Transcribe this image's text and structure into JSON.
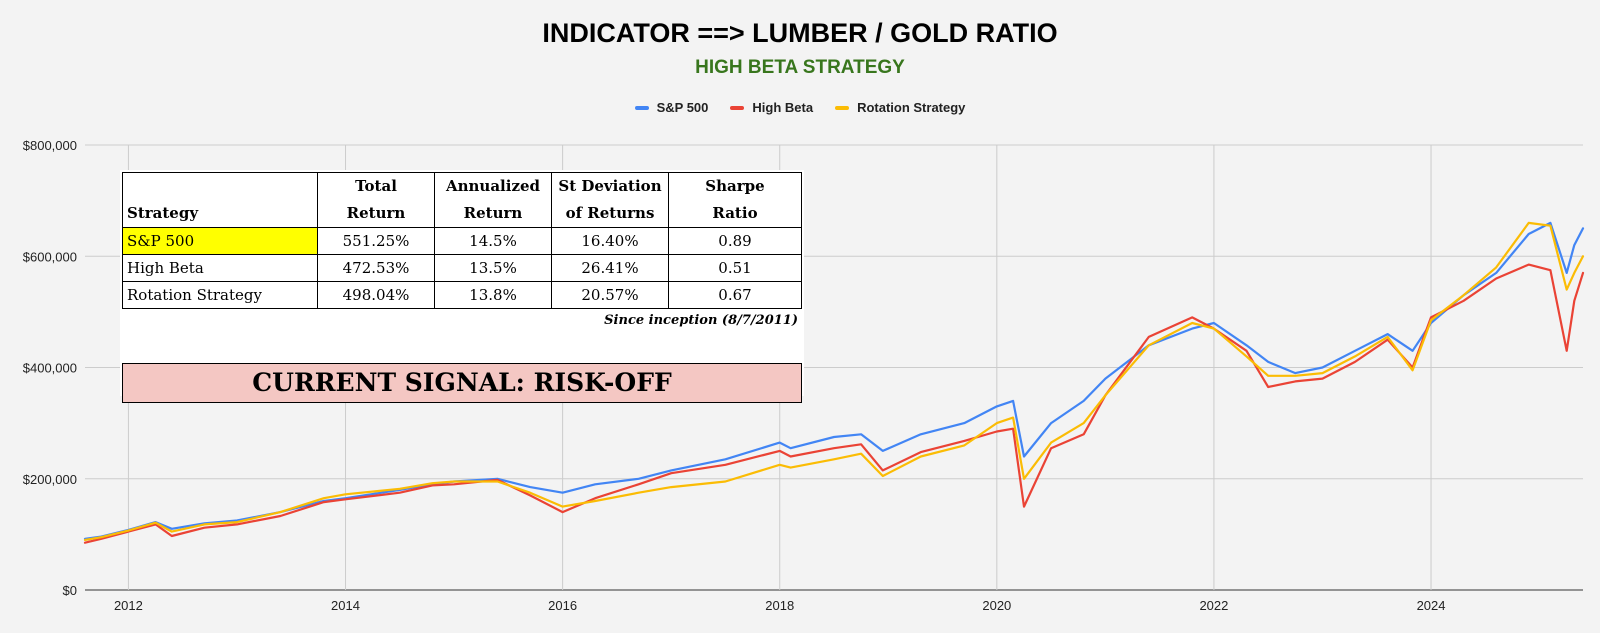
{
  "chart_data": {
    "type": "line",
    "title": "INDICATOR ==> LUMBER / GOLD RATIO",
    "subtitle": "HIGH BETA STRATEGY",
    "xlabel": "",
    "ylabel": "",
    "xlim": [
      2011.6,
      2025.4
    ],
    "ylim": [
      0,
      800000
    ],
    "y_ticks": [
      0,
      200000,
      400000,
      600000,
      800000
    ],
    "y_tick_labels": [
      "$0",
      "$200,000",
      "$400,000",
      "$600,000",
      "$800,000"
    ],
    "x_ticks": [
      2012,
      2014,
      2016,
      2018,
      2020,
      2022,
      2024
    ],
    "x_tick_labels": [
      "2012",
      "2014",
      "2016",
      "2018",
      "2020",
      "2022",
      "2024"
    ],
    "grid": true,
    "legend_position": "top",
    "series": [
      {
        "name": "S&P 500",
        "color": "#4285f4",
        "x": [
          2011.6,
          2011.75,
          2012.0,
          2012.25,
          2012.4,
          2012.7,
          2013.0,
          2013.4,
          2013.8,
          2014.0,
          2014.5,
          2014.8,
          2015.0,
          2015.4,
          2015.7,
          2016.0,
          2016.3,
          2016.7,
          2017.0,
          2017.5,
          2018.0,
          2018.1,
          2018.5,
          2018.75,
          2018.95,
          2019.3,
          2019.7,
          2020.0,
          2020.15,
          2020.25,
          2020.5,
          2020.8,
          2021.0,
          2021.4,
          2021.8,
          2022.0,
          2022.3,
          2022.5,
          2022.75,
          2023.0,
          2023.3,
          2023.6,
          2023.83,
          2024.0,
          2024.3,
          2024.6,
          2024.9,
          2025.1,
          2025.25,
          2025.32,
          2025.4
        ],
        "values": [
          92000,
          96000,
          108000,
          122000,
          110000,
          120000,
          125000,
          140000,
          160000,
          165000,
          180000,
          190000,
          195000,
          200000,
          185000,
          175000,
          190000,
          200000,
          215000,
          235000,
          265000,
          255000,
          275000,
          280000,
          250000,
          280000,
          300000,
          330000,
          340000,
          240000,
          300000,
          340000,
          380000,
          440000,
          470000,
          480000,
          440000,
          410000,
          390000,
          400000,
          430000,
          460000,
          430000,
          480000,
          530000,
          570000,
          640000,
          660000,
          570000,
          620000,
          650000
        ]
      },
      {
        "name": "High Beta",
        "color": "#ea4335",
        "x": [
          2011.6,
          2011.75,
          2012.0,
          2012.25,
          2012.4,
          2012.7,
          2013.0,
          2013.4,
          2013.8,
          2014.0,
          2014.5,
          2014.8,
          2015.0,
          2015.4,
          2015.7,
          2016.0,
          2016.3,
          2016.7,
          2017.0,
          2017.5,
          2018.0,
          2018.1,
          2018.5,
          2018.75,
          2018.95,
          2019.3,
          2019.7,
          2020.0,
          2020.15,
          2020.25,
          2020.5,
          2020.8,
          2021.0,
          2021.4,
          2021.8,
          2022.0,
          2022.3,
          2022.5,
          2022.75,
          2023.0,
          2023.3,
          2023.6,
          2023.83,
          2024.0,
          2024.3,
          2024.6,
          2024.9,
          2025.1,
          2025.25,
          2025.32,
          2025.4
        ],
        "values": [
          85000,
          92000,
          105000,
          118000,
          97000,
          112000,
          118000,
          133000,
          158000,
          163000,
          175000,
          188000,
          190000,
          198000,
          170000,
          140000,
          165000,
          190000,
          210000,
          225000,
          250000,
          240000,
          255000,
          262000,
          215000,
          248000,
          268000,
          285000,
          290000,
          150000,
          255000,
          280000,
          350000,
          455000,
          490000,
          470000,
          430000,
          365000,
          375000,
          380000,
          410000,
          450000,
          400000,
          490000,
          520000,
          560000,
          585000,
          575000,
          430000,
          520000,
          570000
        ]
      },
      {
        "name": "Rotation Strategy",
        "color": "#fbbc04",
        "x": [
          2011.6,
          2011.75,
          2012.0,
          2012.25,
          2012.4,
          2012.7,
          2013.0,
          2013.4,
          2013.8,
          2014.0,
          2014.5,
          2014.8,
          2015.0,
          2015.4,
          2015.7,
          2016.0,
          2016.3,
          2016.7,
          2017.0,
          2017.5,
          2018.0,
          2018.1,
          2018.5,
          2018.75,
          2018.95,
          2019.3,
          2019.7,
          2020.0,
          2020.15,
          2020.25,
          2020.5,
          2020.8,
          2021.0,
          2021.4,
          2021.8,
          2022.0,
          2022.3,
          2022.5,
          2022.75,
          2023.0,
          2023.3,
          2023.6,
          2023.83,
          2024.0,
          2024.3,
          2024.6,
          2024.9,
          2025.1,
          2025.25,
          2025.32,
          2025.4
        ],
        "values": [
          90000,
          95000,
          107000,
          121000,
          105000,
          118000,
          122000,
          140000,
          165000,
          172000,
          182000,
          192000,
          195000,
          195000,
          175000,
          150000,
          160000,
          175000,
          185000,
          195000,
          225000,
          220000,
          235000,
          245000,
          205000,
          240000,
          260000,
          300000,
          310000,
          200000,
          265000,
          300000,
          350000,
          440000,
          480000,
          470000,
          420000,
          385000,
          385000,
          390000,
          420000,
          455000,
          395000,
          485000,
          530000,
          580000,
          660000,
          655000,
          540000,
          570000,
          600000
        ]
      }
    ]
  },
  "stats_table": {
    "headers": {
      "strategy": "Strategy",
      "total_1": "Total",
      "total_2": "Return",
      "annualized_1": "Annualized",
      "annualized_2": "Return",
      "stdev_1": "St Deviation",
      "stdev_2": "of Returns",
      "sharpe_1": "Sharpe",
      "sharpe_2": "Ratio"
    },
    "rows": [
      {
        "strategy": "S&P 500",
        "total_return": "551.25%",
        "annualized_return": "14.5%",
        "st_deviation": "16.40%",
        "sharpe_ratio": "0.89"
      },
      {
        "strategy": "High Beta",
        "total_return": "472.53%",
        "annualized_return": "13.5%",
        "st_deviation": "26.41%",
        "sharpe_ratio": "0.51"
      },
      {
        "strategy": "Rotation Strategy",
        "total_return": "498.04%",
        "annualized_return": "13.8%",
        "st_deviation": "20.57%",
        "sharpe_ratio": "0.67"
      }
    ],
    "highlight_color": "#ffff00",
    "since_note": "Since inception (8/7/2011)"
  },
  "signal": {
    "text": "CURRENT SIGNAL: RISK-OFF",
    "background": "#f4c7c3"
  }
}
